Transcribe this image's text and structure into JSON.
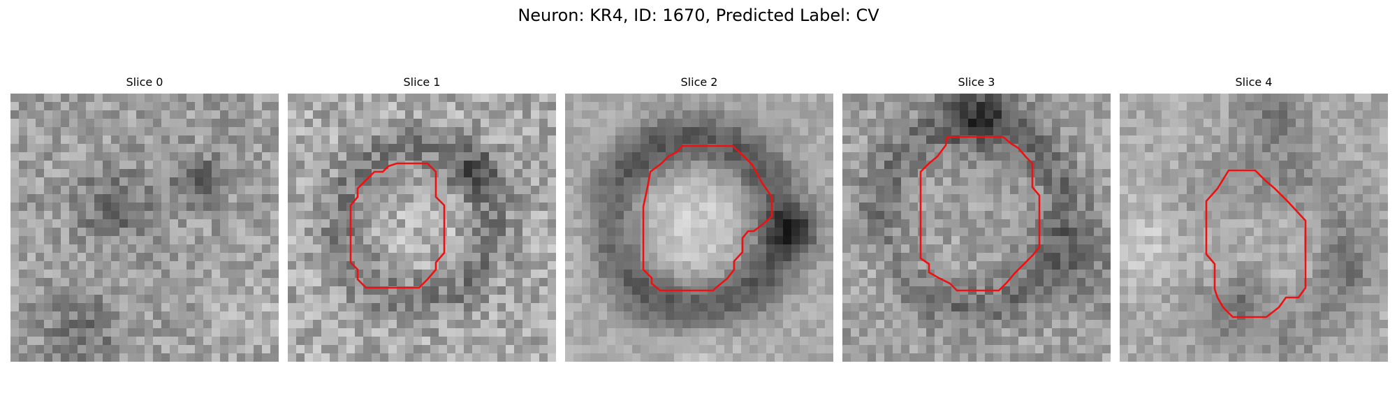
{
  "figure": {
    "title": "Neuron: KR4, ID: 1670, Predicted Label: CV"
  },
  "colors": {
    "contour": "#ee1111",
    "background": "#ffffff"
  },
  "panels": [
    {
      "title": "Slice 0",
      "has_contour": false
    },
    {
      "title": "Slice 1",
      "has_contour": true
    },
    {
      "title": "Slice 2",
      "has_contour": true
    },
    {
      "title": "Slice 3",
      "has_contour": true
    },
    {
      "title": "Slice 4",
      "has_contour": true
    }
  ]
}
